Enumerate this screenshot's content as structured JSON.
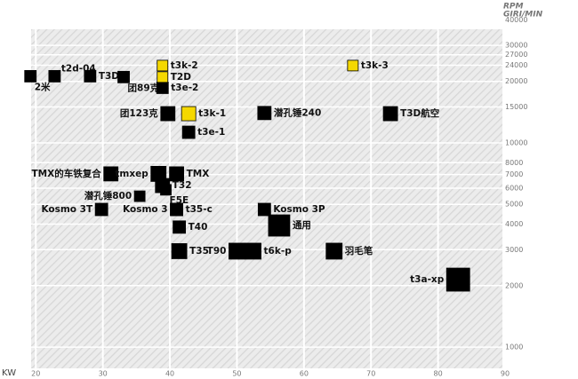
{
  "chart_data": {
    "type": "scatter",
    "x_label": "KW",
    "y_label": "RPM",
    "y_sublabel": "GIRI/MIN",
    "xlim": [
      19.3,
      90
    ],
    "xticks": [
      20,
      30,
      40,
      50,
      60,
      70,
      80,
      90
    ],
    "ylim": [
      787,
      41400
    ],
    "log_y": true,
    "yticks": [
      1000,
      2000,
      3000,
      4000,
      5000,
      6000,
      7000,
      8000,
      10000,
      15000,
      20000,
      24000,
      27000,
      30000,
      40000
    ],
    "grid": true,
    "series": [
      {
        "color": "#000000",
        "labels": [
          "2米",
          "t2d-04",
          "T3D",
          "团89克",
          "t3e-2",
          "团123克",
          "潜孔锤240",
          "T3D航空",
          "t3e-1",
          "TMX的车铁复合",
          "tmxep",
          "TMX",
          "T32",
          "潜孔锤800",
          "F5E",
          "Kosmo 3T",
          "Kosmo 3",
          "t35-c",
          "Kosmo 3P",
          "通用",
          "T40",
          "T35",
          "T90",
          "t6k-p",
          "羽毛笔",
          "t3a-xp"
        ],
        "x": [
          19.2,
          22.8,
          28.1,
          33.1,
          38.9,
          39.7,
          54.1,
          72.9,
          42.8,
          31.2,
          38.3,
          41.0,
          38.9,
          35.5,
          39.4,
          29.8,
          41.0,
          41.0,
          54.1,
          56.3,
          41.4,
          41.4,
          50.0,
          52.4,
          64.5,
          83.0
        ],
        "values": [
          21200,
          21200,
          21200,
          21000,
          18600,
          13900,
          14000,
          13900,
          11270,
          7050,
          7050,
          7050,
          6180,
          5480,
          5890,
          4720,
          4720,
          4720,
          4720,
          3940,
          3870,
          2950,
          2950,
          2950,
          2950,
          2140
        ]
      },
      {
        "color": "#f5d800",
        "labels": [
          "t3k-2",
          "T2D",
          "t3k-3",
          "t3k-1"
        ],
        "x": [
          38.9,
          38.9,
          67.3,
          42.8
        ],
        "values": [
          23900,
          21000,
          23900,
          13900
        ]
      }
    ]
  }
}
